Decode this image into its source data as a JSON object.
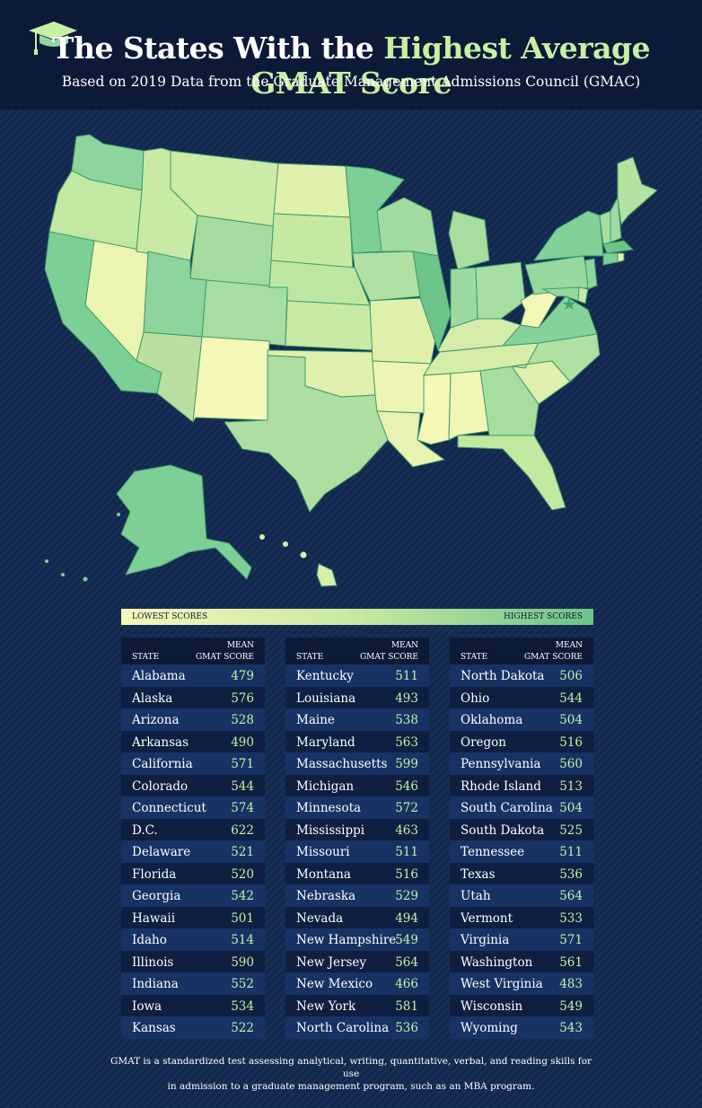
{
  "header": {
    "title_plain": "The States With the",
    "title_highlight": "Highest Average GMAT Score",
    "subtitle": "Based on 2019 Data from the Graduate Management Admissions Council (GMAC)",
    "icon": "graduation-cap-icon"
  },
  "colors": {
    "header_bg": "#0c1a38",
    "page_bg": "#13284f",
    "highlight": "#c6f0a2",
    "low_score": "#f6f8b8",
    "high_score": "#6cc489"
  },
  "legend": {
    "low_label": "LOWEST SCORES",
    "high_label": "HIGHEST SCORES"
  },
  "table": {
    "state_header": "STATE",
    "score_header_line1": "MEAN",
    "score_header_line2": "GMAT SCORE",
    "columns": [
      [
        {
          "state": "Alabama",
          "score": "479"
        },
        {
          "state": "Alaska",
          "score": "576"
        },
        {
          "state": "Arizona",
          "score": "528"
        },
        {
          "state": "Arkansas",
          "score": "490"
        },
        {
          "state": "California",
          "score": "571"
        },
        {
          "state": "Colorado",
          "score": "544"
        },
        {
          "state": "Connecticut",
          "score": "574"
        },
        {
          "state": "D.C.",
          "score": "622"
        },
        {
          "state": "Delaware",
          "score": "521"
        },
        {
          "state": "Florida",
          "score": "520"
        },
        {
          "state": "Georgia",
          "score": "542"
        },
        {
          "state": "Hawaii",
          "score": "501"
        },
        {
          "state": "Idaho",
          "score": "514"
        },
        {
          "state": "Illinois",
          "score": "590"
        },
        {
          "state": "Indiana",
          "score": "552"
        },
        {
          "state": "Iowa",
          "score": "534"
        },
        {
          "state": "Kansas",
          "score": "522"
        }
      ],
      [
        {
          "state": "Kentucky",
          "score": "511"
        },
        {
          "state": "Louisiana",
          "score": "493"
        },
        {
          "state": "Maine",
          "score": "538"
        },
        {
          "state": "Maryland",
          "score": "563"
        },
        {
          "state": "Massachusetts",
          "score": "599"
        },
        {
          "state": "Michigan",
          "score": "546"
        },
        {
          "state": "Minnesota",
          "score": "572"
        },
        {
          "state": "Mississippi",
          "score": "463"
        },
        {
          "state": "Missouri",
          "score": "511"
        },
        {
          "state": "Montana",
          "score": "516"
        },
        {
          "state": "Nebraska",
          "score": "529"
        },
        {
          "state": "Nevada",
          "score": "494"
        },
        {
          "state": "New Hampshire",
          "score": "549"
        },
        {
          "state": "New Jersey",
          "score": "564"
        },
        {
          "state": "New Mexico",
          "score": "466"
        },
        {
          "state": "New York",
          "score": "581"
        },
        {
          "state": "North Carolina",
          "score": "536"
        }
      ],
      [
        {
          "state": "North Dakota",
          "score": "506"
        },
        {
          "state": "Ohio",
          "score": "544"
        },
        {
          "state": "Oklahoma",
          "score": "504"
        },
        {
          "state": "Oregon",
          "score": "516"
        },
        {
          "state": "Pennsylvania",
          "score": "560"
        },
        {
          "state": "Rhode Island",
          "score": "513"
        },
        {
          "state": "South Carolina",
          "score": "504"
        },
        {
          "state": "South Dakota",
          "score": "525"
        },
        {
          "state": "Tennessee",
          "score": "511"
        },
        {
          "state": "Texas",
          "score": "536"
        },
        {
          "state": "Utah",
          "score": "564"
        },
        {
          "state": "Vermont",
          "score": "533"
        },
        {
          "state": "Virginia",
          "score": "571"
        },
        {
          "state": "Washington",
          "score": "561"
        },
        {
          "state": "West Virginia",
          "score": "483"
        },
        {
          "state": "Wisconsin",
          "score": "549"
        },
        {
          "state": "Wyoming",
          "score": "543"
        }
      ]
    ]
  },
  "footnote": {
    "line1": "GMAT is a standardized test assessing analytical, writing, quantitative, verbal, and reading skills for use",
    "line2": "in admission to a graduate management program, such as an MBA program."
  }
}
